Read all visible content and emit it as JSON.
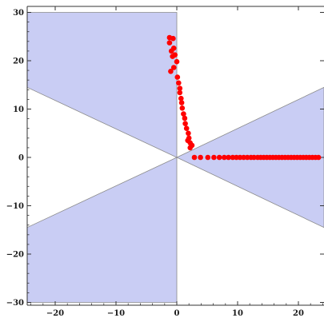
{
  "chart_data": {
    "type": "scatter",
    "title": "",
    "xlabel": "",
    "ylabel": "",
    "xlim": [
      -25,
      25
    ],
    "ylim": [
      -31,
      31
    ],
    "x_ticks": [
      -20,
      -10,
      0,
      10,
      20
    ],
    "y_ticks": [
      -30,
      -20,
      -10,
      0,
      10,
      20,
      30
    ],
    "x_tick_labels": [
      "−20",
      "−10",
      "0",
      "10",
      "20"
    ],
    "y_tick_labels": [
      "−30",
      "−20",
      "−10",
      "0",
      "10",
      "20",
      "30"
    ],
    "grid": false,
    "legend": "none",
    "regions": [
      {
        "points": [
          [
            -29,
            30
          ],
          [
            0,
            30
          ],
          [
            0,
            0
          ],
          [
            -29,
            14.5
          ]
        ]
      },
      {
        "points": [
          [
            -29,
            -30
          ],
          [
            0,
            -30
          ],
          [
            0,
            0
          ],
          [
            -29,
            -14.5
          ]
        ]
      },
      {
        "points": [
          [
            0,
            0
          ],
          [
            29,
            14.5
          ],
          [
            29,
            -14.5
          ]
        ]
      }
    ],
    "series": [
      {
        "x": [
          -1.2,
          -0.6,
          -1.2,
          -0.5,
          -0.9,
          -0.3,
          -0.7,
          -1.0,
          0.0,
          -0.5,
          0.1,
          0.3,
          0.5,
          0.5,
          0.7,
          0.8,
          0.9,
          1.1,
          1.3,
          1.4,
          1.6,
          1.9,
          2.0,
          2.2,
          1.8,
          2.5,
          2.2
        ],
        "y": [
          24.8,
          24.6,
          23.7,
          22.6,
          22.0,
          21.2,
          20.9,
          17.8,
          19.8,
          18.6,
          16.6,
          15.4,
          14.3,
          13.4,
          12.2,
          11.3,
          10.2,
          9.0,
          8.1,
          7.0,
          6.0,
          5.0,
          4.0,
          3.0,
          3.5,
          2.5,
          2.0
        ]
      },
      {
        "x": [
          2.9,
          3.9,
          5.1,
          6.1,
          7.0,
          7.8,
          8.5,
          9.2,
          9.8,
          10.4,
          11.0,
          11.6,
          12.2,
          12.7,
          13.3,
          13.8,
          14.3,
          14.8,
          15.3,
          15.8,
          16.3,
          16.8,
          17.3,
          17.8,
          18.3,
          18.8,
          19.3,
          19.8,
          20.3,
          20.8,
          21.3,
          21.8,
          22.3,
          22.8,
          23.3
        ],
        "y": [
          0,
          0,
          0,
          0,
          0,
          0,
          0,
          0,
          0,
          0,
          0,
          0,
          0,
          0,
          0,
          0,
          0,
          0,
          0,
          0,
          0,
          0,
          0,
          0,
          0,
          0,
          0,
          0,
          0,
          0,
          0,
          0,
          0,
          0,
          0
        ]
      }
    ],
    "colors": {
      "region_fill": "#c9cdf4",
      "region_stroke": "#8a8a8a",
      "point": "#ff0000",
      "axis": "#333333"
    }
  }
}
